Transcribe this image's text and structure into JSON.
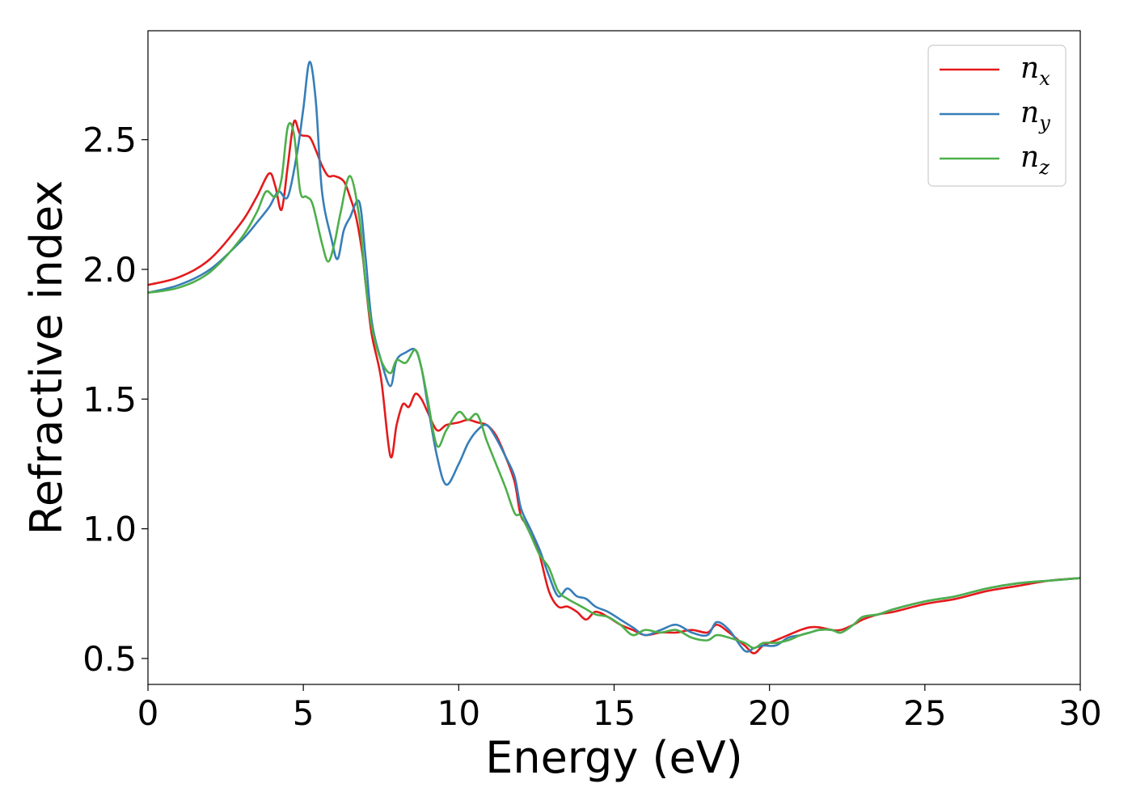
{
  "chart_data": {
    "type": "line",
    "title": "",
    "xlabel": "Energy (eV)",
    "ylabel": "Refractive index",
    "xlim": [
      0,
      30
    ],
    "ylim": [
      0.4,
      2.92
    ],
    "xticks": [
      0,
      5,
      10,
      15,
      20,
      25,
      30
    ],
    "xtick_labels": [
      "0",
      "5",
      "10",
      "15",
      "20",
      "25",
      "30"
    ],
    "yticks": [
      0.5,
      1.0,
      1.5,
      2.0,
      2.5
    ],
    "ytick_labels": [
      "0.5",
      "1.0",
      "1.5",
      "2.0",
      "2.5"
    ],
    "grid": false,
    "legend_position": "top-right",
    "series": [
      {
        "name": "n_x",
        "label_base": "n",
        "label_sub": "x",
        "color": "#e41a1c",
        "x": [
          0,
          1,
          2,
          3,
          3.5,
          3.9,
          4.1,
          4.3,
          4.5,
          4.7,
          4.9,
          5.2,
          5.4,
          5.6,
          5.8,
          6.0,
          6.3,
          6.5,
          6.7,
          6.9,
          7.0,
          7.2,
          7.5,
          7.8,
          8.0,
          8.2,
          8.4,
          8.6,
          8.8,
          9.0,
          9.3,
          9.6,
          10.0,
          10.3,
          10.6,
          10.9,
          11.2,
          11.5,
          11.8,
          12.0,
          12.3,
          12.6,
          12.9,
          13.2,
          13.5,
          13.8,
          14.1,
          14.4,
          14.8,
          15.2,
          15.6,
          16.0,
          16.5,
          17.0,
          17.5,
          18.0,
          18.3,
          18.7,
          19.2,
          19.5,
          19.8,
          20.2,
          20.6,
          21.0,
          21.3,
          21.6,
          22.0,
          22.3,
          22.7,
          23.0,
          23.5,
          24.0,
          25.0,
          26.0,
          27.0,
          28.0,
          29.0,
          30.0
        ],
        "y": [
          1.94,
          1.97,
          2.04,
          2.18,
          2.28,
          2.37,
          2.32,
          2.23,
          2.4,
          2.57,
          2.52,
          2.51,
          2.46,
          2.4,
          2.36,
          2.36,
          2.34,
          2.28,
          2.2,
          2.06,
          1.95,
          1.75,
          1.58,
          1.28,
          1.4,
          1.48,
          1.47,
          1.52,
          1.5,
          1.45,
          1.38,
          1.4,
          1.41,
          1.42,
          1.41,
          1.4,
          1.36,
          1.28,
          1.18,
          1.05,
          1.0,
          0.9,
          0.76,
          0.7,
          0.7,
          0.68,
          0.65,
          0.68,
          0.66,
          0.63,
          0.61,
          0.59,
          0.6,
          0.6,
          0.61,
          0.6,
          0.63,
          0.6,
          0.55,
          0.52,
          0.55,
          0.57,
          0.59,
          0.61,
          0.62,
          0.62,
          0.61,
          0.61,
          0.63,
          0.65,
          0.67,
          0.68,
          0.71,
          0.73,
          0.76,
          0.78,
          0.8,
          0.81
        ]
      },
      {
        "name": "n_y",
        "label_base": "n",
        "label_sub": "y",
        "color": "#377eb8",
        "x": [
          0,
          1,
          2,
          3,
          3.5,
          3.9,
          4.2,
          4.5,
          4.8,
          5.0,
          5.2,
          5.4,
          5.6,
          5.9,
          6.1,
          6.3,
          6.5,
          6.8,
          7.0,
          7.2,
          7.5,
          7.8,
          8.0,
          8.3,
          8.6,
          8.8,
          9.0,
          9.3,
          9.6,
          10.0,
          10.3,
          10.6,
          10.9,
          11.2,
          11.5,
          11.8,
          12.0,
          12.3,
          12.6,
          12.9,
          13.2,
          13.5,
          13.8,
          14.1,
          14.4,
          14.8,
          15.2,
          15.6,
          16.0,
          16.5,
          17.0,
          17.5,
          18.0,
          18.3,
          18.7,
          19.2,
          19.5,
          19.8,
          20.2,
          20.6,
          21.0,
          21.3,
          21.6,
          22.0,
          22.3,
          22.7,
          23.0,
          23.5,
          24.0,
          25.0,
          26.0,
          27.0,
          28.0,
          29.0,
          30.0
        ],
        "y": [
          1.91,
          1.94,
          2.0,
          2.11,
          2.18,
          2.24,
          2.3,
          2.28,
          2.45,
          2.62,
          2.8,
          2.65,
          2.3,
          2.12,
          2.04,
          2.15,
          2.2,
          2.26,
          2.05,
          1.8,
          1.65,
          1.55,
          1.65,
          1.68,
          1.69,
          1.62,
          1.48,
          1.28,
          1.17,
          1.25,
          1.33,
          1.38,
          1.4,
          1.35,
          1.28,
          1.2,
          1.08,
          1.0,
          0.92,
          0.82,
          0.74,
          0.77,
          0.74,
          0.73,
          0.7,
          0.68,
          0.65,
          0.62,
          0.59,
          0.61,
          0.63,
          0.6,
          0.59,
          0.64,
          0.61,
          0.53,
          0.54,
          0.55,
          0.55,
          0.58,
          0.59,
          0.6,
          0.61,
          0.61,
          0.6,
          0.63,
          0.66,
          0.67,
          0.69,
          0.72,
          0.74,
          0.77,
          0.79,
          0.8,
          0.81
        ]
      },
      {
        "name": "n_z",
        "label_base": "n",
        "label_sub": "z",
        "color": "#4daf4a",
        "x": [
          0,
          1,
          2,
          3,
          3.5,
          3.8,
          4.1,
          4.3,
          4.5,
          4.7,
          4.9,
          5.1,
          5.3,
          5.6,
          5.8,
          6.0,
          6.2,
          6.5,
          6.8,
          7.0,
          7.2,
          7.5,
          7.8,
          8.0,
          8.3,
          8.6,
          8.8,
          9.0,
          9.3,
          9.6,
          10.0,
          10.3,
          10.6,
          10.9,
          11.2,
          11.5,
          11.8,
          12.0,
          12.3,
          12.6,
          12.9,
          13.2,
          13.5,
          13.8,
          14.1,
          14.4,
          14.8,
          15.2,
          15.6,
          16.0,
          16.5,
          17.0,
          17.5,
          18.0,
          18.3,
          18.7,
          19.2,
          19.5,
          19.8,
          20.2,
          20.6,
          21.0,
          21.3,
          21.6,
          22.0,
          22.3,
          22.7,
          23.0,
          23.5,
          24.0,
          25.0,
          26.0,
          27.0,
          28.0,
          29.0,
          30.0
        ],
        "y": [
          1.91,
          1.93,
          1.99,
          2.12,
          2.22,
          2.3,
          2.28,
          2.35,
          2.55,
          2.52,
          2.3,
          2.28,
          2.25,
          2.1,
          2.03,
          2.1,
          2.22,
          2.36,
          2.2,
          1.95,
          1.78,
          1.65,
          1.6,
          1.65,
          1.64,
          1.69,
          1.62,
          1.5,
          1.32,
          1.38,
          1.45,
          1.42,
          1.44,
          1.34,
          1.25,
          1.16,
          1.06,
          1.05,
          0.98,
          0.9,
          0.85,
          0.76,
          0.73,
          0.71,
          0.69,
          0.67,
          0.66,
          0.63,
          0.59,
          0.61,
          0.6,
          0.61,
          0.58,
          0.57,
          0.59,
          0.58,
          0.56,
          0.54,
          0.56,
          0.56,
          0.57,
          0.59,
          0.6,
          0.61,
          0.61,
          0.6,
          0.63,
          0.66,
          0.67,
          0.69,
          0.72,
          0.74,
          0.77,
          0.79,
          0.8,
          0.81
        ]
      }
    ]
  }
}
